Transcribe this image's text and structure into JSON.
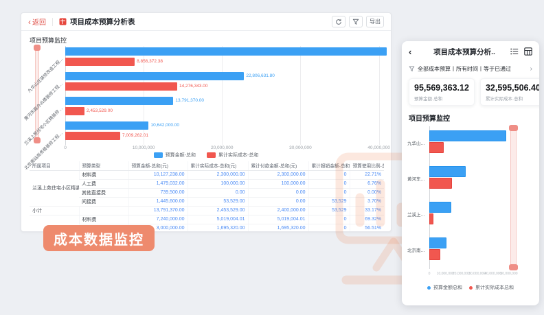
{
  "app": {
    "back_label": "返回",
    "title": "项目成本预算分析表",
    "toolbar": {
      "refresh_tooltip": "刷新",
      "filter_tooltip": "筛选",
      "export_label": "导出"
    },
    "section_title": "项目预算监控"
  },
  "chart_data": [
    {
      "type": "bar",
      "orientation": "horizontal",
      "title": "项目预算监控",
      "legend_position": "bottom",
      "grid": true,
      "axis_max": 41000000,
      "x_ticks": [
        {
          "value": 0,
          "label": "0"
        },
        {
          "value": 10000000,
          "label": "10,000,000"
        },
        {
          "value": 20000000,
          "label": "20,000,000"
        },
        {
          "value": 30000000,
          "label": "30,000,000"
        },
        {
          "value": 40000000,
          "label": "40,000,000"
        }
      ],
      "categories": [
        "九华山庄装修改造工程…",
        "黄河东路办公楼装修工程…",
        "兰溪上苑住宅小区精装修…",
        "北京南站商务楼装修工程…"
      ],
      "series": [
        {
          "name": "预算金额-总和",
          "color": "#3ba0f4",
          "values": [
            48329361.32,
            22806631.8,
            13791370.0,
            10642000.0
          ],
          "labels": [
            "",
            "22,806,631.80",
            "13,791,370.00",
            "10,642,000.00"
          ]
        },
        {
          "name": "累计实际成本-总和",
          "color": "#f1574f",
          "values": [
            8856372.38,
            14276343.0,
            2453529.0,
            7009262.01
          ],
          "labels": [
            "8,856,372.38",
            "14,276,343.00",
            "2,453,529.00",
            "7,009,262.01"
          ]
        }
      ]
    },
    {
      "type": "bar",
      "orientation": "horizontal",
      "title": "项目预算监控",
      "legend_position": "bottom",
      "grid": false,
      "axis_max": 50000000,
      "x_ticks": [
        {
          "value": 0,
          "label": "0"
        },
        {
          "value": 10000000,
          "label": "10,000,000"
        },
        {
          "value": 20000000,
          "label": "20,000,000"
        },
        {
          "value": 30000000,
          "label": "30,000,000"
        },
        {
          "value": 40000000,
          "label": "40,000,000"
        },
        {
          "value": 50000000,
          "label": "50,000,000"
        }
      ],
      "categories": [
        "九华山…",
        "黄河东…",
        "兰溪上…",
        "北京南…"
      ],
      "series": [
        {
          "name": "预算金额总和",
          "color": "#3ba0f4",
          "values": [
            48329361.32,
            22806631.8,
            13791370.0,
            10642000.0
          ]
        },
        {
          "name": "累计实际成本总和",
          "color": "#f1574f",
          "values": [
            8856372.38,
            14276343.0,
            2453529.0,
            7009262.01
          ]
        }
      ]
    }
  ],
  "table": {
    "headers": [
      "所属项目",
      "预算类型",
      "预算金额-总和(元)",
      "累计实际成本-总和(元)",
      "累计付款金额-总和(元)",
      "累计报销金额-总和(元)",
      "预算使用比例-总和(%)"
    ],
    "groups": [
      {
        "project": "兰溪上苑住宅小区精装修第…",
        "rows": [
          {
            "type": "材料费",
            "values": [
              "10,127,238.00",
              "2,300,000.00",
              "2,300,000.00",
              "0",
              "22.71%"
            ]
          },
          {
            "type": "人工费",
            "values": [
              "1,479,032.00",
              "100,000.00",
              "100,000.00",
              "0",
              "6.76%"
            ]
          },
          {
            "type": "其他直接费",
            "values": [
              "739,500.00",
              "0.00",
              "0.00",
              "0",
              "0.00%"
            ]
          },
          {
            "type": "间接费",
            "values": [
              "1,445,600.00",
              "53,529.00",
              "0.00",
              "53,529",
              "3.70%"
            ]
          }
        ]
      },
      {
        "project": "小计",
        "rows": [
          {
            "type": "",
            "values": [
              "13,791,370.00",
              "2,453,529.00",
              "2,400,000.00",
              "53,529",
              "33.17%"
            ]
          }
        ]
      },
      {
        "project": "",
        "rows": [
          {
            "type": "材料费",
            "values": [
              "7,240,000.00",
              "5,019,004.01",
              "5,019,004.01",
              "0",
              "69.32%"
            ]
          },
          {
            "type": "人工费",
            "values": [
              "3,000,000.00",
              "1,695,320.00",
              "1,695,320.00",
              "0",
              "56.51%"
            ]
          }
        ]
      }
    ]
  },
  "badge": {
    "label": "成本数据监控",
    "color": "#ee8a6d"
  },
  "panel": {
    "title": "项目成本预算分析..",
    "filter_text": "全部成本预算丨所有时间丨等于已通过",
    "metrics": [
      {
        "value": "95,569,363.12",
        "label": "预算金额·总和"
      },
      {
        "value": "32,595,506.40",
        "label": "累计实际成本·总和"
      }
    ],
    "section_title": "项目预算监控"
  }
}
